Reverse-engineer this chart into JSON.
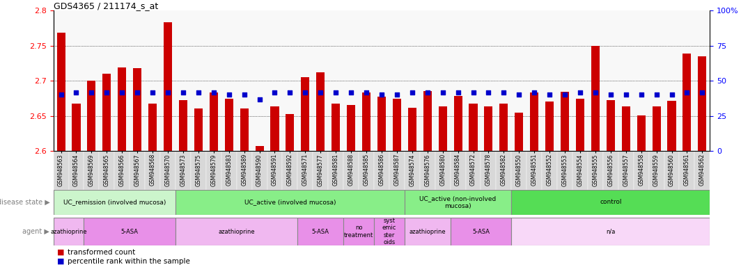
{
  "title": "GDS4365 / 211174_s_at",
  "ylim": [
    2.6,
    2.8
  ],
  "yticks": [
    2.6,
    2.65,
    2.7,
    2.75,
    2.8
  ],
  "right_yticks": [
    0,
    25,
    50,
    75,
    100
  ],
  "right_ylim": [
    0,
    100
  ],
  "samples": [
    "GSM948563",
    "GSM948564",
    "GSM948569",
    "GSM948565",
    "GSM948566",
    "GSM948567",
    "GSM948568",
    "GSM948570",
    "GSM948573",
    "GSM948575",
    "GSM948579",
    "GSM948583",
    "GSM948589",
    "GSM948590",
    "GSM948591",
    "GSM948592",
    "GSM948571",
    "GSM948577",
    "GSM948581",
    "GSM948588",
    "GSM948585",
    "GSM948586",
    "GSM948587",
    "GSM948574",
    "GSM948576",
    "GSM948580",
    "GSM948584",
    "GSM948572",
    "GSM948578",
    "GSM948582",
    "GSM948550",
    "GSM948551",
    "GSM948552",
    "GSM948553",
    "GSM948554",
    "GSM948555",
    "GSM948556",
    "GSM948557",
    "GSM948558",
    "GSM948559",
    "GSM948560",
    "GSM948561",
    "GSM948562"
  ],
  "bar_values": [
    2.769,
    2.667,
    2.7,
    2.71,
    2.719,
    2.718,
    2.667,
    2.783,
    2.672,
    2.66,
    2.683,
    2.674,
    2.66,
    2.607,
    2.663,
    2.653,
    2.705,
    2.712,
    2.667,
    2.665,
    2.683,
    2.677,
    2.674,
    2.661,
    2.685,
    2.663,
    2.678,
    2.667,
    2.663,
    2.667,
    2.655,
    2.683,
    2.67,
    2.684,
    2.674,
    2.75,
    2.672,
    2.663,
    2.651,
    2.663,
    2.671,
    2.739,
    2.735
  ],
  "blue_values": [
    2.68,
    2.683,
    2.683,
    2.683,
    2.683,
    2.683,
    2.683,
    2.683,
    2.683,
    2.683,
    2.683,
    2.68,
    2.68,
    2.673,
    2.683,
    2.683,
    2.683,
    2.683,
    2.683,
    2.683,
    2.683,
    2.68,
    2.68,
    2.683,
    2.683,
    2.683,
    2.683,
    2.683,
    2.683,
    2.683,
    2.68,
    2.683,
    2.68,
    2.68,
    2.683,
    2.683,
    2.68,
    2.68,
    2.68,
    2.68,
    2.68,
    2.683,
    2.683
  ],
  "bar_color": "#cc0000",
  "blue_color": "#0000cc",
  "disease_state_groups": [
    {
      "label": "UC_remission (involved mucosa)",
      "start": 0,
      "end": 8,
      "color": "#ccf5cc"
    },
    {
      "label": "UC_active (involved mucosa)",
      "start": 8,
      "end": 23,
      "color": "#88ee88"
    },
    {
      "label": "UC_active (non-involved\nmucosa)",
      "start": 23,
      "end": 30,
      "color": "#88ee88"
    },
    {
      "label": "control",
      "start": 30,
      "end": 43,
      "color": "#55dd55"
    }
  ],
  "agent_groups": [
    {
      "label": "azathioprine",
      "start": 0,
      "end": 2,
      "color": "#f0b8f0"
    },
    {
      "label": "5-ASA",
      "start": 2,
      "end": 8,
      "color": "#e890e8"
    },
    {
      "label": "azathioprine",
      "start": 8,
      "end": 16,
      "color": "#f0b8f0"
    },
    {
      "label": "5-ASA",
      "start": 16,
      "end": 19,
      "color": "#e890e8"
    },
    {
      "label": "no\ntreatment",
      "start": 19,
      "end": 21,
      "color": "#e890e8"
    },
    {
      "label": "syst\nemic\nster\noids",
      "start": 21,
      "end": 23,
      "color": "#e890e8"
    },
    {
      "label": "azathioprine",
      "start": 23,
      "end": 26,
      "color": "#f0b8f0"
    },
    {
      "label": "5-ASA",
      "start": 26,
      "end": 30,
      "color": "#e890e8"
    },
    {
      "label": "n/a",
      "start": 30,
      "end": 43,
      "color": "#f8d8f8"
    }
  ],
  "tick_bg_color": "#d8d8d8",
  "chart_bg_color": "#f8f8f8"
}
